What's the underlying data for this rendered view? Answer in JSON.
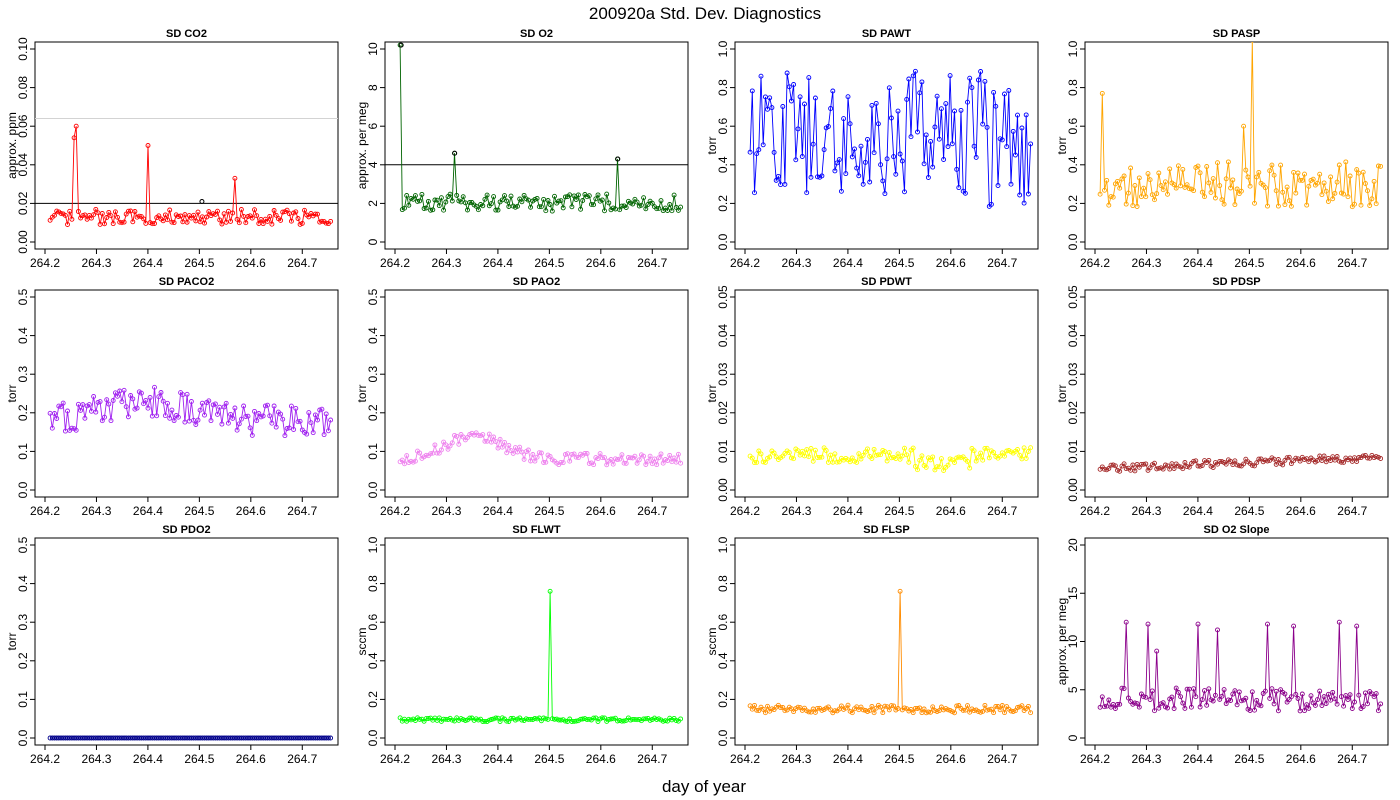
{
  "figure": {
    "title": "200920a   Std. Dev. Diagnostics",
    "xlabel": "day of year"
  },
  "chart_data": [
    {
      "key": "co2",
      "type": "scatter",
      "title": "SD CO2",
      "ylabel": "approx. ppm",
      "color": "#ff0000",
      "xlim": [
        264.2,
        264.75
      ],
      "ylim": [
        0,
        0.1
      ],
      "yticks": [
        "0.00",
        "0.02",
        "0.04",
        "0.06",
        "0.08",
        "0.10"
      ],
      "xticks": [
        "264.2",
        "264.3",
        "264.4",
        "264.5",
        "264.6",
        "264.7"
      ],
      "hlines": [
        {
          "y": 0.02,
          "color": "#000000"
        },
        {
          "y": 0.064,
          "color": "#d3d3d3"
        }
      ],
      "highlights": [
        {
          "x": 264.505,
          "y": 0.021
        }
      ],
      "spikes": [
        [
          264.255,
          0.054
        ],
        [
          264.262,
          0.06
        ],
        [
          264.4,
          0.05
        ],
        [
          264.57,
          0.033
        ]
      ]
    },
    {
      "key": "o2",
      "type": "scatter",
      "title": "SD O2",
      "ylabel": "approx. per meg",
      "color": "#006400",
      "xlim": [
        264.2,
        264.75
      ],
      "ylim": [
        0,
        10
      ],
      "yticks": [
        "0",
        "2",
        "4",
        "6",
        "8",
        "10"
      ],
      "xticks": [
        "264.2",
        "264.3",
        "264.4",
        "264.5",
        "264.6",
        "264.7"
      ],
      "hlines": [
        {
          "y": 4,
          "color": "#000000"
        }
      ],
      "highlights": [
        {
          "x": 264.212,
          "y": 10.2
        },
        {
          "x": 264.316,
          "y": 4.6
        },
        {
          "x": 264.633,
          "y": 4.3
        }
      ],
      "spikes": [
        [
          264.212,
          10.2
        ],
        [
          264.316,
          4.6
        ],
        [
          264.633,
          4.3
        ]
      ]
    },
    {
      "key": "pawt",
      "type": "scatter",
      "title": "SD PAWT",
      "ylabel": "torr",
      "color": "#0000ff",
      "xlim": [
        264.2,
        264.75
      ],
      "ylim": [
        0,
        1
      ],
      "yticks": [
        "0.0",
        "0.2",
        "0.4",
        "0.6",
        "0.8",
        "1.0"
      ],
      "xticks": [
        "264.2",
        "264.3",
        "264.4",
        "264.5",
        "264.6",
        "264.7"
      ],
      "hlines": [],
      "highlights": [],
      "spikes": []
    },
    {
      "key": "pasp",
      "type": "scatter",
      "title": "SD PASP",
      "ylabel": "torr",
      "color": "#ffa500",
      "xlim": [
        264.2,
        264.75
      ],
      "ylim": [
        0,
        1
      ],
      "yticks": [
        "0.0",
        "0.2",
        "0.4",
        "0.6",
        "0.8",
        "1.0"
      ],
      "xticks": [
        "264.2",
        "264.3",
        "264.4",
        "264.5",
        "264.6",
        "264.7"
      ],
      "hlines": [],
      "highlights": [],
      "spikes": [
        [
          264.215,
          0.77
        ],
        [
          264.49,
          0.6
        ],
        [
          264.505,
          1.05
        ]
      ]
    },
    {
      "key": "paco2",
      "type": "scatter",
      "title": "SD PACO2",
      "ylabel": "torr",
      "color": "#a020f0",
      "xlim": [
        264.2,
        264.75
      ],
      "ylim": [
        0,
        0.5
      ],
      "yticks": [
        "0.0",
        "0.1",
        "0.2",
        "0.3",
        "0.4",
        "0.5"
      ],
      "xticks": [
        "264.2",
        "264.3",
        "264.4",
        "264.5",
        "264.6",
        "264.7"
      ],
      "hlines": [],
      "highlights": [],
      "spikes": []
    },
    {
      "key": "pao2",
      "type": "scatter",
      "title": "SD PAO2",
      "ylabel": "torr",
      "color": "#ee82ee",
      "xlim": [
        264.2,
        264.75
      ],
      "ylim": [
        0,
        0.5
      ],
      "yticks": [
        "0.0",
        "0.1",
        "0.2",
        "0.3",
        "0.4",
        "0.5"
      ],
      "xticks": [
        "264.2",
        "264.3",
        "264.4",
        "264.5",
        "264.6",
        "264.7"
      ],
      "hlines": [],
      "highlights": [],
      "spikes": []
    },
    {
      "key": "pdwt",
      "type": "scatter",
      "title": "SD PDWT",
      "ylabel": "torr",
      "color": "#ffff00",
      "xlim": [
        264.2,
        264.75
      ],
      "ylim": [
        0,
        0.05
      ],
      "yticks": [
        "0.00",
        "0.01",
        "0.02",
        "0.03",
        "0.04",
        "0.05"
      ],
      "xticks": [
        "264.2",
        "264.3",
        "264.4",
        "264.5",
        "264.6",
        "264.7"
      ],
      "hlines": [],
      "highlights": [],
      "spikes": []
    },
    {
      "key": "pdsp",
      "type": "scatter",
      "title": "SD PDSP",
      "ylabel": "torr",
      "color": "#a52a2a",
      "xlim": [
        264.2,
        264.75
      ],
      "ylim": [
        0,
        0.05
      ],
      "yticks": [
        "0.00",
        "0.01",
        "0.02",
        "0.03",
        "0.04",
        "0.05"
      ],
      "xticks": [
        "264.2",
        "264.3",
        "264.4",
        "264.5",
        "264.6",
        "264.7"
      ],
      "hlines": [],
      "highlights": [],
      "spikes": []
    },
    {
      "key": "pdo2",
      "type": "scatter",
      "title": "SD PDO2",
      "ylabel": "torr",
      "color": "#00008b",
      "xlim": [
        264.2,
        264.75
      ],
      "ylim": [
        0,
        0.5
      ],
      "yticks": [
        "0.0",
        "0.1",
        "0.2",
        "0.3",
        "0.4",
        "0.5"
      ],
      "xticks": [
        "264.2",
        "264.3",
        "264.4",
        "264.5",
        "264.6",
        "264.7"
      ],
      "hlines": [],
      "highlights": [],
      "spikes": []
    },
    {
      "key": "flwt",
      "type": "scatter",
      "title": "SD FLWT",
      "ylabel": "sccm",
      "color": "#00ff00",
      "xlim": [
        264.2,
        264.75
      ],
      "ylim": [
        0,
        1
      ],
      "yticks": [
        "0.0",
        "0.2",
        "0.4",
        "0.6",
        "0.8",
        "1.0"
      ],
      "xticks": [
        "264.2",
        "264.3",
        "264.4",
        "264.5",
        "264.6",
        "264.7"
      ],
      "hlines": [],
      "highlights": [],
      "spikes": [
        [
          264.503,
          0.76
        ]
      ]
    },
    {
      "key": "flsp",
      "type": "scatter",
      "title": "SD FLSP",
      "ylabel": "sccm",
      "color": "#ff8c00",
      "xlim": [
        264.2,
        264.75
      ],
      "ylim": [
        0,
        1
      ],
      "yticks": [
        "0.0",
        "0.2",
        "0.4",
        "0.6",
        "0.8",
        "1.0"
      ],
      "xticks": [
        "264.2",
        "264.3",
        "264.4",
        "264.5",
        "264.6",
        "264.7"
      ],
      "hlines": [],
      "highlights": [],
      "spikes": [
        [
          264.503,
          0.76
        ]
      ]
    },
    {
      "key": "o2slope",
      "type": "scatter",
      "title": "SD O2 Slope",
      "ylabel": "approx. per meg",
      "color": "#8b008b",
      "xlim": [
        264.2,
        264.75
      ],
      "ylim": [
        0,
        20
      ],
      "yticks": [
        "0",
        "5",
        "10",
        "15",
        "20"
      ],
      "xticks": [
        "264.2",
        "264.3",
        "264.4",
        "264.5",
        "264.6",
        "264.7"
      ],
      "hlines": [],
      "highlights": [],
      "spikes": [
        [
          264.26,
          12
        ],
        [
          264.305,
          11.8
        ],
        [
          264.32,
          9
        ],
        [
          264.4,
          11.8
        ],
        [
          264.44,
          11.2
        ],
        [
          264.535,
          11.8
        ],
        [
          264.585,
          11.6
        ],
        [
          264.675,
          12
        ],
        [
          264.707,
          11.6
        ]
      ]
    }
  ]
}
